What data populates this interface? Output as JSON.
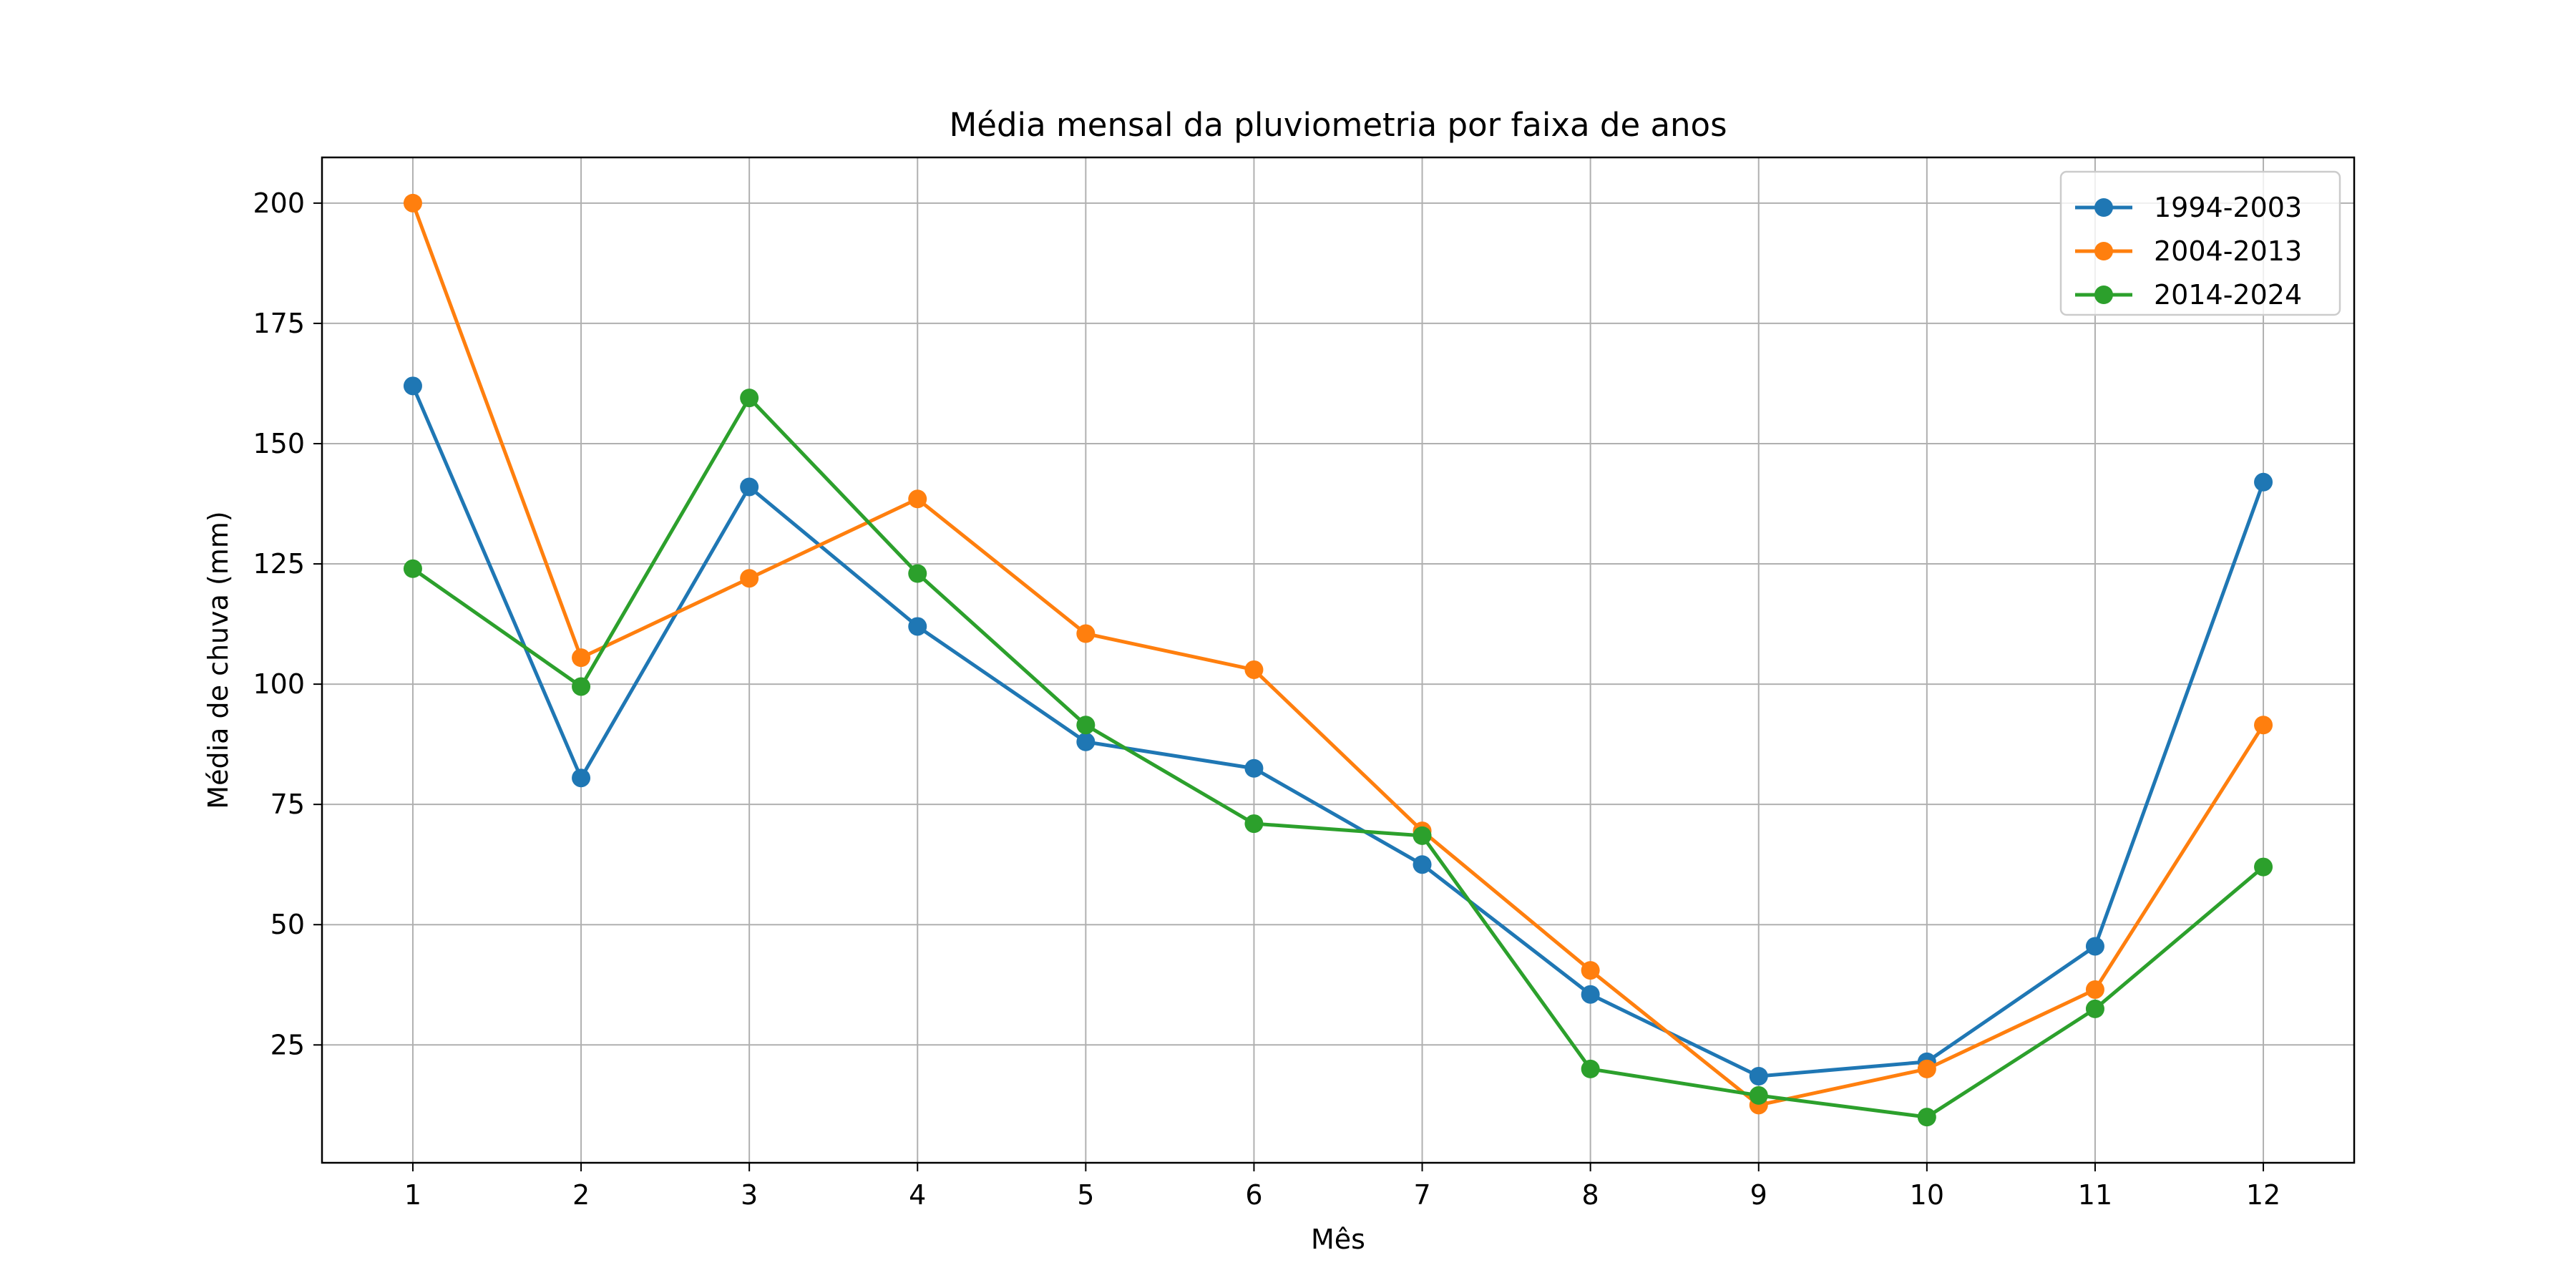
{
  "chart_data": {
    "type": "line",
    "title": "Média mensal da pluviometria por faixa de anos",
    "xlabel": "Mês",
    "ylabel": "Média de chuva (mm)",
    "x": [
      1,
      2,
      3,
      4,
      5,
      6,
      7,
      8,
      9,
      10,
      11,
      12
    ],
    "xlim": [
      0.46,
      12.54
    ],
    "ylim": [
      0.5,
      209.5
    ],
    "xticks": [
      1,
      2,
      3,
      4,
      5,
      6,
      7,
      8,
      9,
      10,
      11,
      12
    ],
    "yticks": [
      25,
      50,
      75,
      100,
      125,
      150,
      175,
      200
    ],
    "grid": true,
    "legend_position": "top-right",
    "series": [
      {
        "name": "1994-2003",
        "color": "#1f77b4",
        "values": [
          162,
          80.5,
          141,
          112,
          88,
          82.5,
          62.5,
          35.5,
          18.5,
          21.5,
          45.5,
          142
        ]
      },
      {
        "name": "2004-2013",
        "color": "#ff7f0e",
        "values": [
          200,
          105.5,
          122,
          138.5,
          110.5,
          103,
          69.5,
          40.5,
          12.5,
          20,
          36.5,
          91.5
        ]
      },
      {
        "name": "2014-2024",
        "color": "#2ca02c",
        "values": [
          124,
          99.5,
          159.5,
          123,
          91.5,
          71,
          68.5,
          20,
          14.5,
          10,
          32.5,
          62
        ]
      }
    ]
  }
}
